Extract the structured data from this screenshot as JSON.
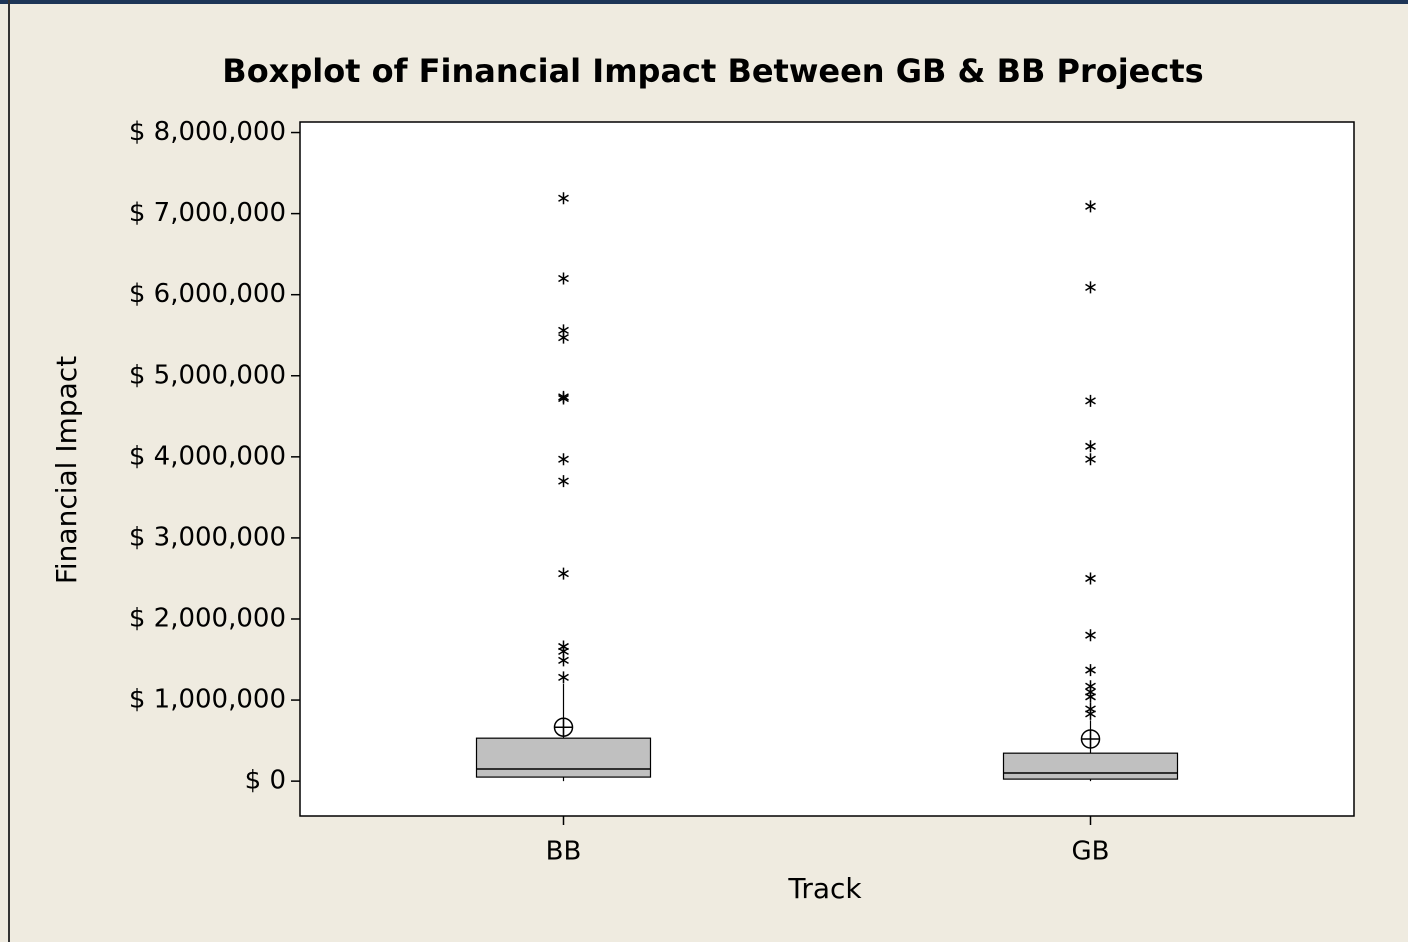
{
  "chart_data": {
    "type": "box",
    "title": "Boxplot of Financial Impact Between GB & BB Projects",
    "xlabel": "Track",
    "ylabel": "Financial Impact",
    "categories": [
      "BB",
      "GB"
    ],
    "color": "#c0c0c0",
    "boxes": [
      {
        "whisker_low": 0,
        "q1": 50000,
        "median": 150000,
        "q3": 530000,
        "whisker_high": 1200000,
        "mean": 665000,
        "outliers": [
          7190000,
          6200000,
          5560000,
          5470000,
          4740000,
          4720000,
          3970000,
          3700000,
          2560000,
          1660000,
          1600000,
          1490000,
          1280000
        ]
      },
      {
        "whisker_low": 0,
        "q1": 25000,
        "median": 100000,
        "q3": 345000,
        "whisker_high": 750000,
        "mean": 520000,
        "outliers": [
          7090000,
          6090000,
          4690000,
          4130000,
          3970000,
          2500000,
          1800000,
          1370000,
          1170000,
          1100000,
          1040000,
          890000,
          830000
        ]
      }
    ],
    "ylim": [
      -430000,
      8130000
    ],
    "yticks": [
      {
        "value": 0,
        "label": "$ 0"
      },
      {
        "value": 1000000,
        "label": "$ 1,000,000"
      },
      {
        "value": 2000000,
        "label": "$ 2,000,000"
      },
      {
        "value": 3000000,
        "label": "$ 3,000,000"
      },
      {
        "value": 4000000,
        "label": "$ 4,000,000"
      },
      {
        "value": 5000000,
        "label": "$ 5,000,000"
      },
      {
        "value": 6000000,
        "label": "$ 6,000,000"
      },
      {
        "value": 7000000,
        "label": "$ 7,000,000"
      },
      {
        "value": 8000000,
        "label": "$ 8,000,000"
      }
    ]
  }
}
